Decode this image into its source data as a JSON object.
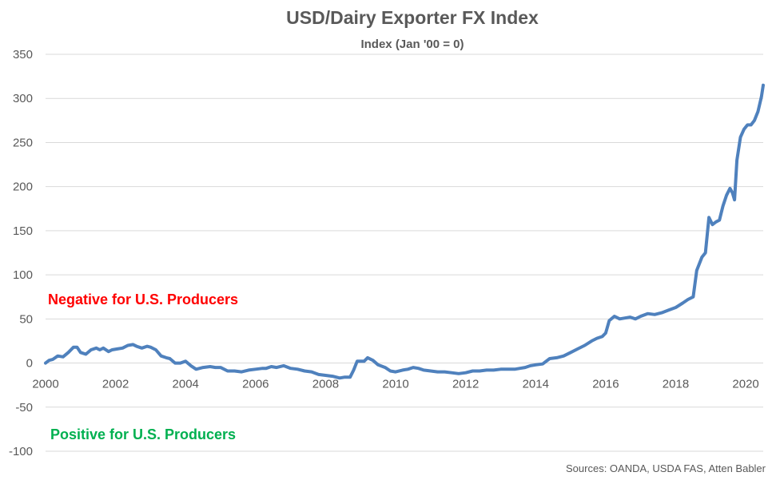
{
  "chart_data": {
    "type": "line",
    "title": "USD/Dairy Exporter FX Index",
    "subtitle": "Index (Jan '00 = 0)",
    "xlabel": "",
    "ylabel": "",
    "xlim": [
      2000,
      2020.5
    ],
    "ylim": [
      -100,
      350
    ],
    "y_ticks": [
      -100,
      -50,
      0,
      50,
      100,
      150,
      200,
      250,
      300,
      350
    ],
    "x_ticks": [
      "2000",
      "2002",
      "2004",
      "2006",
      "2008",
      "2010",
      "2012",
      "2014",
      "2016",
      "2018",
      "2020"
    ],
    "grid": "horizontal",
    "line_color": "#4F81BD",
    "series": [
      {
        "x": [
          2000.0,
          2000.1,
          2000.2,
          2000.35,
          2000.5,
          2000.65,
          2000.8,
          2000.9,
          2001.0,
          2001.15,
          2001.3,
          2001.45,
          2001.55,
          2001.65,
          2001.8,
          2001.9,
          2002.05,
          2002.2,
          2002.35,
          2002.5,
          2002.6,
          2002.75,
          2002.9,
          2003.0,
          2003.15,
          2003.3,
          2003.45,
          2003.55,
          2003.7,
          2003.85,
          2004.0,
          2004.15,
          2004.3,
          2004.5,
          2004.7,
          2004.85,
          2005.0,
          2005.2,
          2005.4,
          2005.6,
          2005.8,
          2006.0,
          2006.2,
          2006.3,
          2006.45,
          2006.6,
          2006.8,
          2007.0,
          2007.2,
          2007.4,
          2007.6,
          2007.8,
          2008.0,
          2008.2,
          2008.4,
          2008.55,
          2008.7,
          2008.8,
          2008.9,
          2009.0,
          2009.1,
          2009.2,
          2009.35,
          2009.5,
          2009.7,
          2009.85,
          2010.0,
          2010.2,
          2010.35,
          2010.5,
          2010.65,
          2010.8,
          2011.0,
          2011.2,
          2011.4,
          2011.6,
          2011.8,
          2012.0,
          2012.2,
          2012.4,
          2012.6,
          2012.8,
          2013.0,
          2013.2,
          2013.4,
          2013.55,
          2013.7,
          2013.85,
          2014.0,
          2014.2,
          2014.4,
          2014.6,
          2014.8,
          2015.0,
          2015.2,
          2015.4,
          2015.6,
          2015.75,
          2015.9,
          2016.0,
          2016.1,
          2016.25,
          2016.4,
          2016.55,
          2016.7,
          2016.85,
          2017.0,
          2017.2,
          2017.4,
          2017.6,
          2017.8,
          2018.0,
          2018.2,
          2018.35,
          2018.5,
          2018.6,
          2018.75,
          2018.85,
          2018.95,
          2019.05,
          2019.15,
          2019.25,
          2019.35,
          2019.45,
          2019.55,
          2019.62,
          2019.68,
          2019.75,
          2019.85,
          2019.95,
          2020.05,
          2020.15,
          2020.25,
          2020.35,
          2020.45,
          2020.5
        ],
        "values": [
          0,
          3,
          4,
          8,
          7,
          12,
          18,
          18,
          12,
          10,
          15,
          17,
          15,
          17,
          13,
          15,
          16,
          17,
          20,
          21,
          19,
          17,
          19,
          18,
          15,
          8,
          6,
          5,
          0,
          0,
          2,
          -3,
          -7,
          -5,
          -4,
          -5,
          -5,
          -9,
          -9,
          -10,
          -8,
          -7,
          -6,
          -6,
          -4,
          -5,
          -3,
          -6,
          -7,
          -9,
          -10,
          -13,
          -14,
          -15,
          -17,
          -16,
          -16,
          -8,
          2,
          2,
          2,
          6,
          3,
          -2,
          -5,
          -9,
          -10,
          -8,
          -7,
          -5,
          -6,
          -8,
          -9,
          -10,
          -10,
          -11,
          -12,
          -11,
          -9,
          -9,
          -8,
          -8,
          -7,
          -7,
          -7,
          -6,
          -5,
          -3,
          -2,
          -1,
          5,
          6,
          8,
          12,
          16,
          20,
          25,
          28,
          30,
          34,
          48,
          53,
          50,
          51,
          52,
          50,
          53,
          56,
          55,
          57,
          60,
          63,
          68,
          72,
          75,
          105,
          120,
          125,
          165,
          157,
          160,
          162,
          178,
          190,
          198,
          193,
          185,
          230,
          256,
          265,
          270,
          270,
          275,
          285,
          302,
          315
        ]
      }
    ],
    "annotations": {
      "negative": "Negative for U.S. Producers",
      "positive": "Positive for U.S. Producers",
      "negative_color": "#FF0000",
      "positive_color": "#00B050"
    },
    "source": "Sources: OANDA, USDA FAS, Atten Babler"
  }
}
